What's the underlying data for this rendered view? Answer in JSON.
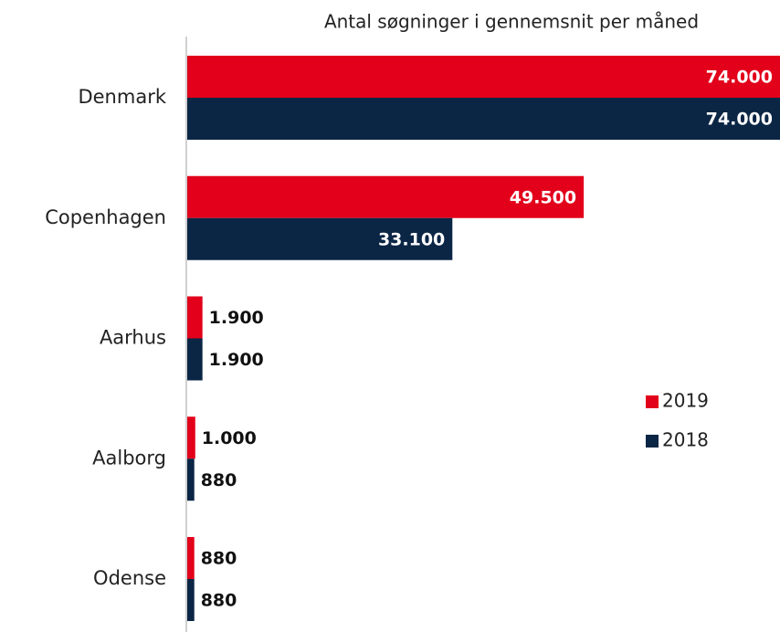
{
  "chart_data": {
    "type": "bar",
    "orientation": "horizontal",
    "title": "Antal søgninger i gennemsnit per måned",
    "categories": [
      "Denmark",
      "Copenhagen",
      "Aarhus",
      "Aalborg",
      "Odense"
    ],
    "series": [
      {
        "name": "2019",
        "color": "#e2001a",
        "values": [
          74000,
          49500,
          1900,
          1000,
          880
        ],
        "value_labels": [
          "74.000",
          "49.500",
          "1.900",
          "1.000",
          "880"
        ]
      },
      {
        "name": "2018",
        "color": "#0b2545",
        "values": [
          74000,
          33100,
          1900,
          880,
          880
        ],
        "value_labels": [
          "74.000",
          "33.100",
          "1.900",
          "880",
          "880"
        ]
      }
    ],
    "xlim": [
      0,
      74000
    ],
    "legend": "right"
  }
}
